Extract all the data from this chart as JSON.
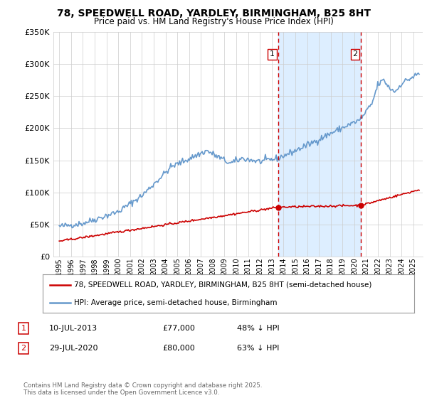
{
  "title": "78, SPEEDWELL ROAD, YARDLEY, BIRMINGHAM, B25 8HT",
  "subtitle": "Price paid vs. HM Land Registry's House Price Index (HPI)",
  "title_fontsize": 10,
  "subtitle_fontsize": 8.5,
  "ylim": [
    0,
    350000
  ],
  "yticks": [
    0,
    50000,
    100000,
    150000,
    200000,
    250000,
    300000,
    350000
  ],
  "ytick_labels": [
    "£0",
    "£50K",
    "£100K",
    "£150K",
    "£200K",
    "£250K",
    "£300K",
    "£350K"
  ],
  "line1_color": "#cc0000",
  "line2_color": "#6699cc",
  "vline_color": "#cc0000",
  "shade_color": "#ddeeff",
  "background_color": "#ffffff",
  "grid_color": "#cccccc",
  "legend1_label": "78, SPEEDWELL ROAD, YARDLEY, BIRMINGHAM, B25 8HT (semi-detached house)",
  "legend2_label": "HPI: Average price, semi-detached house, Birmingham",
  "annotation1_num": "1",
  "annotation1_date": "10-JUL-2013",
  "annotation1_price": "£77,000",
  "annotation1_hpi": "48% ↓ HPI",
  "annotation2_num": "2",
  "annotation2_date": "29-JUL-2020",
  "annotation2_price": "£80,000",
  "annotation2_hpi": "63% ↓ HPI",
  "footer": "Contains HM Land Registry data © Crown copyright and database right 2025.\nThis data is licensed under the Open Government Licence v3.0.",
  "vline1_x": 2013.53,
  "vline2_x": 2020.57,
  "sale1_x": 2013.53,
  "sale1_y": 77000,
  "sale2_x": 2020.57,
  "sale2_y": 80000,
  "xlim_left": 1994.5,
  "xlim_right": 2025.8,
  "xtick_years": [
    1995,
    1996,
    1997,
    1998,
    1999,
    2000,
    2001,
    2002,
    2003,
    2004,
    2005,
    2006,
    2007,
    2008,
    2009,
    2010,
    2011,
    2012,
    2013,
    2014,
    2015,
    2016,
    2017,
    2018,
    2019,
    2020,
    2021,
    2022,
    2023,
    2024,
    2025
  ]
}
